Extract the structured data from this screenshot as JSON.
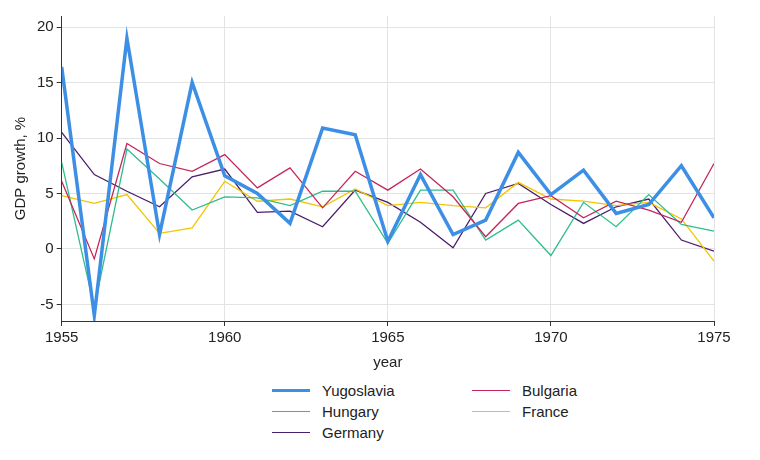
{
  "chart_data": {
    "type": "line",
    "x_label": "year",
    "y_label": "GDP growth, %",
    "x": [
      1955,
      1956,
      1957,
      1958,
      1959,
      1960,
      1961,
      1962,
      1963,
      1964,
      1965,
      1966,
      1967,
      1968,
      1969,
      1970,
      1971,
      1972,
      1973,
      1974,
      1975
    ],
    "series": [
      {
        "name": "Yugoslavia",
        "color": "#3d8fe6",
        "line_style": "thick",
        "values": [
          16.4,
          -6,
          19,
          1.3,
          15,
          6.6,
          5,
          2.3,
          10.9,
          10.3,
          0.7,
          6.7,
          1.3,
          2.6,
          8.7,
          4.9,
          7.1,
          3.2,
          4.0,
          7.5,
          2.8
        ]
      },
      {
        "name": "Bulgaria",
        "color": "#c4265a",
        "line_style": "solid",
        "values": [
          6.1,
          -0.9,
          9.5,
          7.7,
          7.0,
          8.5,
          5.5,
          7.3,
          3.7,
          7.0,
          5.3,
          7.2,
          4.7,
          1.1,
          4.1,
          4.8,
          2.8,
          4.3,
          3.5,
          2.4,
          7.7
        ]
      },
      {
        "name": "Hungary",
        "color": "#2ebd8f",
        "line_style": "solid",
        "values": [
          7.8,
          -5.3,
          9.0,
          6.3,
          3.5,
          4.7,
          4.6,
          3.9,
          5.2,
          5.2,
          0.5,
          5.3,
          5.3,
          0.8,
          2.6,
          -0.6,
          4.2,
          2.0,
          4.9,
          2.2,
          1.6
        ]
      },
      {
        "name": "France",
        "color": "#f2c500",
        "line_style": "solid",
        "values": [
          4.8,
          4.1,
          4.9,
          1.4,
          1.9,
          6.1,
          4.3,
          4.5,
          3.8,
          5.4,
          3.9,
          4.2,
          3.9,
          3.7,
          6.0,
          4.5,
          4.3,
          3.9,
          4.2,
          2.7,
          -1.1
        ]
      },
      {
        "name": "Germany",
        "color": "#4b1d6b",
        "line_style": "solid",
        "values": [
          10.5,
          6.7,
          5.2,
          3.8,
          6.5,
          7.2,
          3.3,
          3.4,
          2.0,
          5.3,
          4.2,
          2.4,
          0.1,
          5.0,
          5.9,
          4.0,
          2.3,
          3.8,
          4.5,
          0.8,
          -0.2
        ]
      }
    ],
    "xlim": [
      1955,
      1975
    ],
    "xticks": [
      1955,
      1960,
      1965,
      1970,
      1975
    ],
    "ylim": [
      -6.5,
      21
    ],
    "yticks": [
      -5,
      0,
      5,
      10,
      15,
      20
    ],
    "grid": true,
    "legend": "bottom"
  }
}
